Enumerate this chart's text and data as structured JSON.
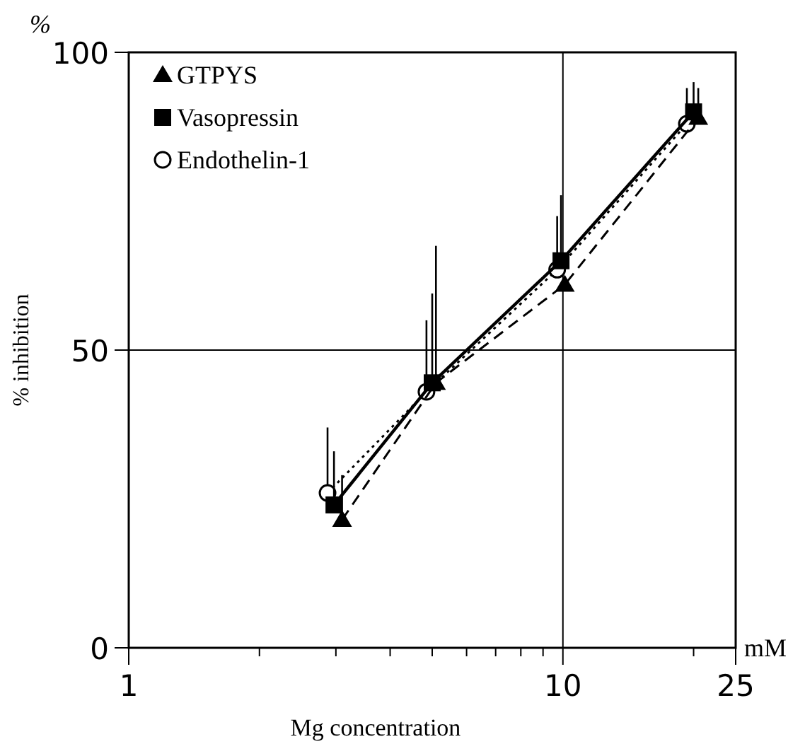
{
  "chart_data": {
    "type": "line",
    "xlabel": "Mg concentration",
    "ylabel": "% inhibition",
    "annotations": [
      "%",
      "mM"
    ],
    "log": "x",
    "xlim": [
      1,
      25
    ],
    "ylim": [
      0,
      100
    ],
    "xticks": [
      1,
      {
        "value": 2,
        "label": null
      },
      {
        "value": 3,
        "label": null
      },
      {
        "value": 4,
        "label": null
      },
      {
        "value": 5,
        "label": null
      },
      {
        "value": 6,
        "label": null
      },
      {
        "value": 7,
        "label": null
      },
      {
        "value": 8,
        "label": null
      },
      {
        "value": 9,
        "label": null
      },
      10,
      {
        "value": 20,
        "label": null
      },
      25
    ],
    "yticks": [
      0,
      50,
      100
    ],
    "grid": true,
    "legend": "top left",
    "series": [
      {
        "name": "GTPYS",
        "color": "#000000",
        "marker": "triangle",
        "line_style": "dashed",
        "x": [
          3.1,
          5.1,
          10.1,
          20.5
        ],
        "values": [
          21.5,
          44.5,
          61,
          89
        ],
        "errors": [
          [
            21.5,
            29
          ],
          [
            44.5,
            67.5
          ],
          null,
          [
            89,
            94
          ]
        ]
      },
      {
        "name": "Vasopressin",
        "color": "#000000",
        "marker": "square",
        "line_style": "solid",
        "x": [
          2.97,
          5,
          9.9,
          20
        ],
        "values": [
          24,
          44.5,
          65,
          90
        ],
        "errors": [
          [
            24,
            33
          ],
          [
            44.5,
            59.5
          ],
          [
            65,
            76
          ],
          [
            90,
            95
          ]
        ]
      },
      {
        "name": "Endothelin-1",
        "color": "#000000",
        "marker": "circle",
        "line_style": "dotted",
        "x": [
          2.87,
          4.85,
          9.7,
          19.3
        ],
        "values": [
          26,
          43,
          63.5,
          88
        ],
        "errors": [
          [
            26,
            37
          ],
          [
            43,
            55
          ],
          [
            63.5,
            72.5
          ],
          [
            88,
            94
          ]
        ]
      }
    ]
  }
}
